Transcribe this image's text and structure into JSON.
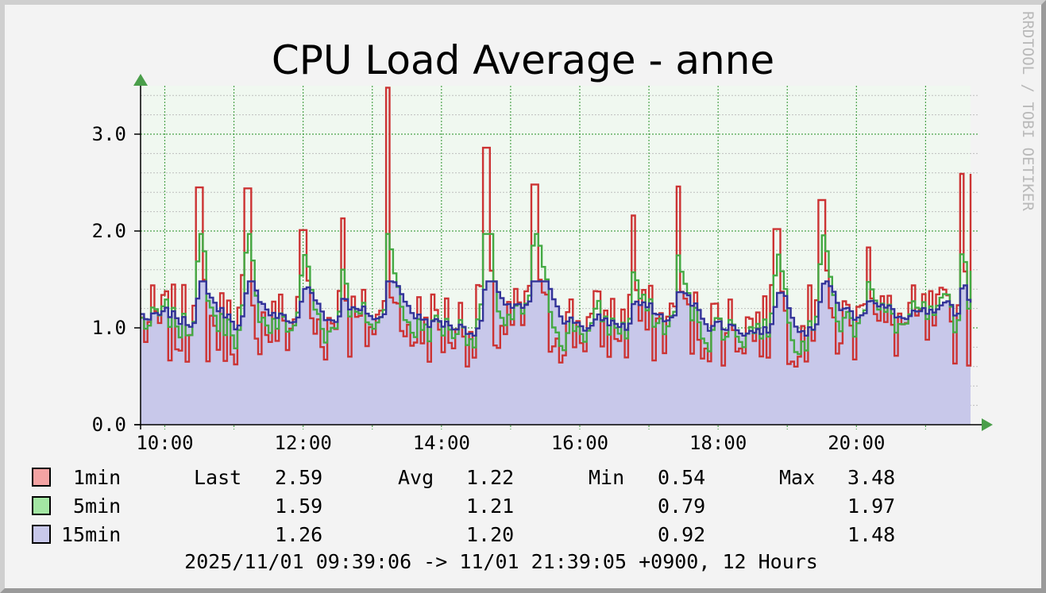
{
  "chart_data": {
    "type": "area",
    "title": "CPU Load Average - anne",
    "watermark": "RRDTOOL / TOBI OETIKER",
    "xlabel": "",
    "ylabel": "",
    "x_time_range": [
      "09:39",
      "21:39"
    ],
    "x_ticks": [
      "10:00",
      "12:00",
      "14:00",
      "16:00",
      "18:00",
      "20:00"
    ],
    "ylim": [
      0,
      3.5
    ],
    "y_ticks": [
      "0.0",
      "1.0",
      "2.0",
      "3.0"
    ],
    "grid": true,
    "colors": {
      "plot_bg": "#f0f8f0",
      "grid": "#3a9a3a",
      "axis_arrow": "#4a9e4a",
      "series_1min": "#cc3333",
      "series_5min": "#44aa44",
      "series_15min": "#333399",
      "area_15min": "#c8c8ea"
    },
    "series": [
      {
        "name": "1min",
        "color": "#cc3333",
        "swatch": "#f4a3a3",
        "last": "2.59",
        "avg": "1.22",
        "min": "0.54",
        "max": "3.48",
        "spikes": [
          {
            "t": "10:29",
            "v": 2.45
          },
          {
            "t": "11:10",
            "v": 2.44
          },
          {
            "t": "11:58",
            "v": 2.01
          },
          {
            "t": "12:33",
            "v": 2.13
          },
          {
            "t": "13:12",
            "v": 3.48
          },
          {
            "t": "14:38",
            "v": 2.86
          },
          {
            "t": "15:19",
            "v": 2.48
          },
          {
            "t": "16:45",
            "v": 2.16
          },
          {
            "t": "17:24",
            "v": 2.46
          },
          {
            "t": "18:49",
            "v": 2.02
          },
          {
            "t": "19:29",
            "v": 2.32
          },
          {
            "t": "20:09",
            "v": 1.83
          },
          {
            "t": "21:30",
            "v": 2.59
          }
        ]
      },
      {
        "name": "5min",
        "color": "#44aa44",
        "swatch": "#a3e6a3",
        "last": "1.59",
        "avg": "1.21",
        "min": "0.79",
        "max": "1.97"
      },
      {
        "name": "15min",
        "color": "#333399",
        "swatch": "#c8c8ea",
        "last": "1.26",
        "avg": "1.20",
        "min": "0.92",
        "max": "1.48"
      }
    ]
  },
  "legend": {
    "last_label": "Last",
    "avg_label": "Avg",
    "min_label": "Min",
    "max_label": "Max"
  },
  "footer": "2025/11/01 09:39:06 -> 11/01 21:39:05 +0900, 12 Hours"
}
